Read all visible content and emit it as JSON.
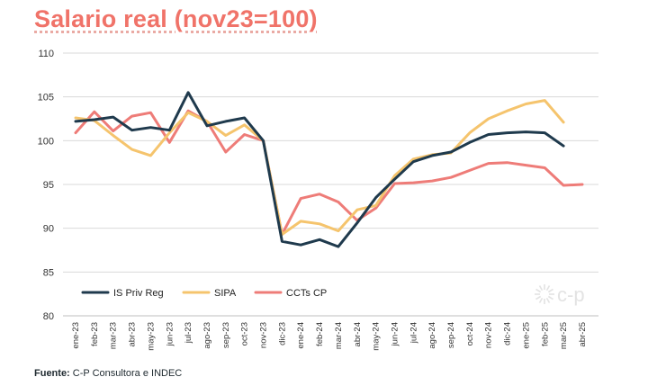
{
  "title": "Salario real (nov23=100)",
  "source_label": "Fuente:",
  "source_text": " C-P Consultora e INDEC",
  "logo_text": "c-p",
  "colors": {
    "title": "#f07369",
    "IS Priv Reg": "#1f3a4d",
    "SIPA": "#f5c46d",
    "CCTs CP": "#ee7c78",
    "grid": "#d9d9d9"
  },
  "chart_data": {
    "type": "line",
    "title": "Salario real (nov23=100)",
    "xlabel": "",
    "ylabel": "",
    "ylim": [
      80,
      110
    ],
    "yticks": [
      80,
      85,
      90,
      95,
      100,
      105,
      110
    ],
    "grid": true,
    "legend_position": "bottom-left",
    "categories": [
      "ene-23",
      "feb-23",
      "mar-23",
      "abr-23",
      "may-23",
      "jun-23",
      "jul-23",
      "ago-23",
      "sep-23",
      "oct-23",
      "nov-23",
      "dic-23",
      "ene-24",
      "feb-24",
      "mar-24",
      "abr-24",
      "may-24",
      "jun-24",
      "jul-24",
      "ago-24",
      "sep-24",
      "oct-24",
      "nov-24",
      "dic-24",
      "ene-25",
      "feb-25",
      "mar-25",
      "abr-25"
    ],
    "series": [
      {
        "name": "IS Priv Reg",
        "values": [
          102.2,
          102.4,
          102.7,
          101.2,
          101.5,
          101.2,
          105.5,
          101.7,
          102.2,
          102.6,
          100.0,
          88.5,
          88.1,
          88.7,
          87.9,
          90.6,
          93.5,
          95.6,
          97.6,
          98.3,
          98.7,
          99.8,
          100.7,
          100.9,
          101.0,
          100.9,
          99.4,
          null
        ]
      },
      {
        "name": "SIPA",
        "values": [
          102.6,
          102.3,
          100.6,
          99.0,
          98.3,
          100.9,
          103.2,
          102.2,
          100.6,
          101.8,
          100.0,
          89.3,
          90.8,
          90.5,
          89.7,
          92.1,
          92.6,
          96.0,
          97.9,
          98.4,
          98.6,
          100.9,
          102.5,
          103.4,
          104.2,
          104.6,
          102.1,
          null
        ]
      },
      {
        "name": "CCTs CP",
        "values": [
          100.9,
          103.3,
          101.1,
          102.8,
          103.2,
          99.8,
          103.4,
          102.2,
          98.7,
          100.7,
          100.0,
          89.3,
          93.4,
          93.9,
          93.0,
          90.9,
          92.3,
          95.1,
          95.2,
          95.4,
          95.8,
          96.6,
          97.4,
          97.5,
          97.2,
          96.9,
          94.9,
          95.0
        ]
      }
    ]
  }
}
